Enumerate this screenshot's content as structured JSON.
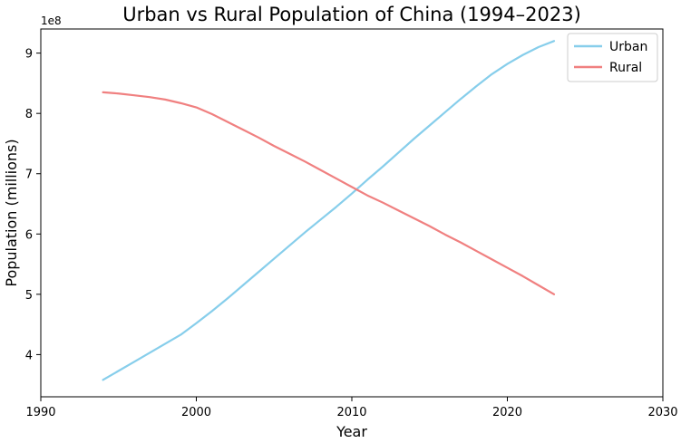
{
  "chart_data": {
    "type": "line",
    "title": "Urban vs Rural Population of China (1994–2023)",
    "xlabel": "Year",
    "ylabel": "Population (millions)",
    "y_offset_label": "1e8",
    "xlim": [
      1990,
      2030
    ],
    "ylim": [
      330000000,
      940000000
    ],
    "x_ticks": [
      1990,
      2000,
      2010,
      2020,
      2030
    ],
    "y_ticks": [
      {
        "value": 400000000,
        "label": "4"
      },
      {
        "value": 500000000,
        "label": "5"
      },
      {
        "value": 600000000,
        "label": "6"
      },
      {
        "value": 700000000,
        "label": "7"
      },
      {
        "value": 800000000,
        "label": "8"
      },
      {
        "value": 900000000,
        "label": "9"
      }
    ],
    "grid": false,
    "legend_position": "top-right",
    "x": [
      1994,
      1995,
      1996,
      1997,
      1998,
      1999,
      2000,
      2001,
      2002,
      2003,
      2004,
      2005,
      2006,
      2007,
      2008,
      2009,
      2010,
      2011,
      2012,
      2013,
      2014,
      2015,
      2016,
      2017,
      2018,
      2019,
      2020,
      2021,
      2022,
      2023
    ],
    "series": [
      {
        "name": "Urban",
        "color": "#87ceeb",
        "values": [
          358000000,
          373000000,
          388000000,
          403000000,
          418000000,
          433000000,
          452000000,
          472000000,
          493000000,
          515000000,
          537000000,
          559000000,
          581000000,
          603000000,
          624000000,
          645000000,
          667000000,
          690000000,
          712000000,
          735000000,
          758000000,
          780000000,
          802000000,
          824000000,
          845000000,
          865000000,
          882000000,
          897000000,
          910000000,
          920000000
        ]
      },
      {
        "name": "Rural",
        "color": "#f08080",
        "values": [
          835000000,
          833000000,
          830000000,
          827000000,
          823000000,
          817000000,
          810000000,
          799000000,
          786000000,
          773000000,
          760000000,
          746000000,
          733000000,
          720000000,
          706000000,
          692000000,
          678000000,
          664000000,
          652000000,
          639000000,
          626000000,
          613000000,
          599000000,
          586000000,
          572000000,
          558000000,
          544000000,
          530000000,
          515000000,
          500000000
        ]
      }
    ]
  }
}
